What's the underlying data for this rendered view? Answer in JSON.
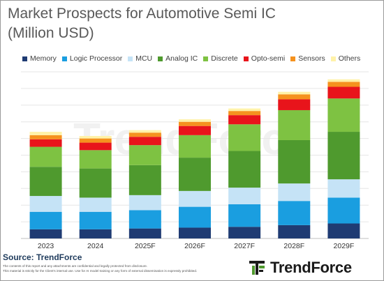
{
  "title_line1": "Market Prospects for Automotive Semi IC",
  "title_line2": "(Million USD)",
  "source": "Source: TrendForce",
  "disclaimer_line1": "The contents of this report and any attachments are confidential and legally protected from disclosure.",
  "disclaimer_line2": "This material is strictly for the Client's internal use. Use for AI model training or any form of external dissemination is expressly prohibited.",
  "logo_text": "TrendForce",
  "watermark_text": "TrendForce",
  "logo_icon": "trendforce-logo-icon",
  "chart_data": {
    "type": "bar",
    "stacked": true,
    "categories": [
      "2023",
      "2024",
      "2025F",
      "2026F",
      "2027F",
      "2028F",
      "2029F"
    ],
    "ylim": [
      0,
      100
    ],
    "grid": true,
    "legend_position": "top",
    "series": [
      {
        "name": "Memory",
        "color": "#1f3b73",
        "values": [
          5.5,
          5.5,
          6.0,
          6.5,
          7.0,
          8.0,
          9.0
        ]
      },
      {
        "name": "Logic Processor",
        "color": "#1a9ee0",
        "values": [
          10.5,
          10.5,
          11.0,
          12.5,
          13.5,
          14.5,
          15.5
        ]
      },
      {
        "name": "MCU",
        "color": "#c5e3f6",
        "values": [
          9.5,
          8.5,
          9.0,
          9.5,
          10.0,
          10.5,
          11.0
        ]
      },
      {
        "name": "Analog IC",
        "color": "#4f9a2e",
        "values": [
          17.5,
          17.5,
          18.0,
          20.0,
          22.0,
          26.0,
          28.5
        ]
      },
      {
        "name": "Discrete",
        "color": "#7ec242",
        "values": [
          12.0,
          11.0,
          12.0,
          13.5,
          16.0,
          18.0,
          20.0
        ]
      },
      {
        "name": "Opto-semi",
        "color": "#e8141b",
        "values": [
          4.5,
          4.5,
          5.0,
          5.5,
          5.5,
          6.5,
          7.0
        ]
      },
      {
        "name": "Sensors",
        "color": "#f5921e",
        "values": [
          2.5,
          2.5,
          2.5,
          2.5,
          2.5,
          3.0,
          3.0
        ]
      },
      {
        "name": "Others",
        "color": "#fff2a8",
        "values": [
          2.0,
          1.5,
          1.5,
          1.5,
          1.5,
          1.5,
          1.5
        ]
      }
    ]
  }
}
